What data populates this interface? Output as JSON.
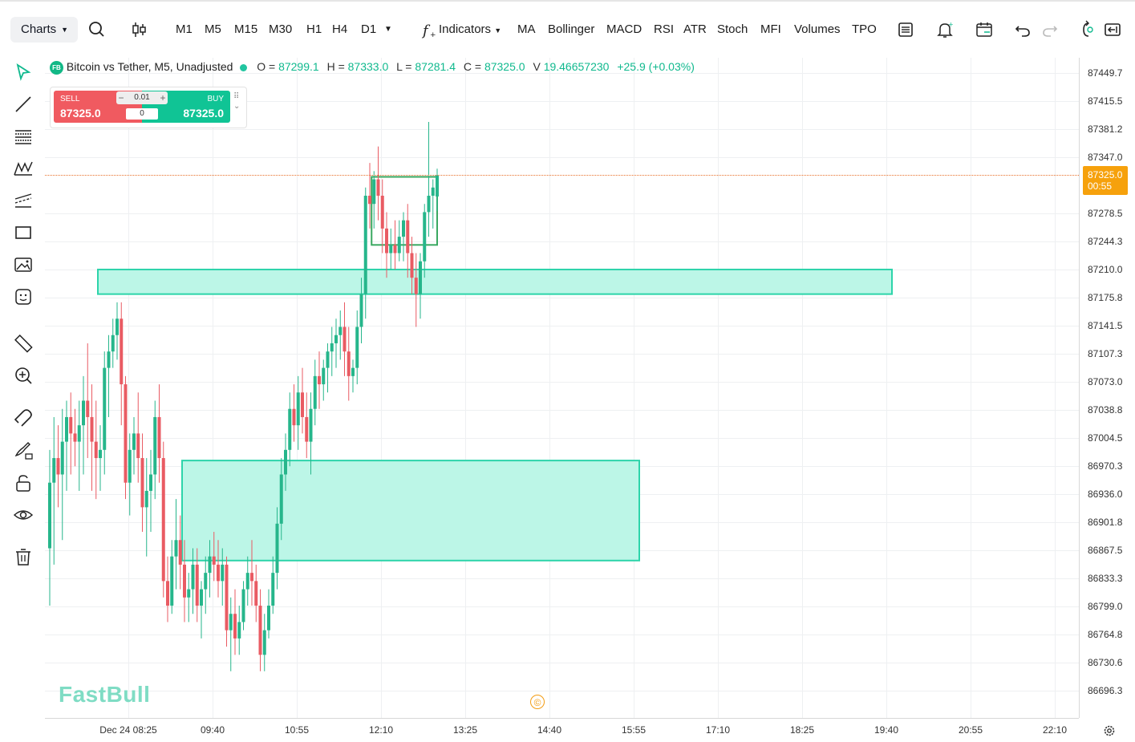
{
  "toolbar": {
    "charts_label": "Charts",
    "timeframes": [
      "M1",
      "M5",
      "M15",
      "M30",
      "H1",
      "H4",
      "D1"
    ],
    "active_timeframe": "M5",
    "indicators_label": "Indicators",
    "indicator_shortcuts": [
      "MA",
      "Bollinger",
      "MACD",
      "RSI",
      "ATR",
      "Stoch",
      "MFI",
      "Volumes",
      "TPO"
    ],
    "icons": [
      "search-icon",
      "candles-icon",
      "timeframe-more-icon",
      "function-icon",
      "layout-icon",
      "alert-bell-icon",
      "calendar-icon",
      "undo-icon",
      "redo-icon",
      "replay-icon",
      "fullscreen-exit-icon"
    ]
  },
  "left_tools": [
    "cursor-icon",
    "trendline-icon",
    "fib-icon",
    "pattern-icon",
    "channel-icon",
    "rectangle-icon",
    "image-icon",
    "emoji-icon",
    "ruler-icon",
    "zoom-in-icon",
    "magnet-icon",
    "brush-lock-icon",
    "lock-icon",
    "eye-icon",
    "trash-icon"
  ],
  "legend": {
    "badge": "FB",
    "title": "Bitcoin vs Tether, M5, Unadjusted",
    "o_label": "O =",
    "o_value": "87299.1",
    "h_label": "H =",
    "h_value": "87333.0",
    "l_label": "L =",
    "l_value": "87281.4",
    "c_label": "C =",
    "c_value": "87325.0",
    "v_label": "V",
    "v_value": "19.46657230",
    "change": "+25.9 (+0.03%)"
  },
  "trade": {
    "sell_label": "SELL",
    "sell_price": "87325.0",
    "buy_label": "BUY",
    "buy_price": "87325.0",
    "lot": "0.01",
    "minus": "−",
    "plus": "+",
    "qty": "0"
  },
  "last_price": {
    "price": "87325.0",
    "countdown": "00:55",
    "color": "#f6a10c"
  },
  "brand": "FastBull",
  "copyright_symbol": "©",
  "colors": {
    "up": "#26b68b",
    "down": "#e95b63",
    "zone_fill": "#b8f5e6",
    "zone_border": "#2dd4aa"
  },
  "chart_data": {
    "type": "candlestick",
    "price_ticks": [
      "87449.7",
      "87415.5",
      "87381.2",
      "87347.0",
      "87278.5",
      "87244.3",
      "87210.0",
      "87175.8",
      "87141.5",
      "87107.3",
      "87073.0",
      "87038.8",
      "87004.5",
      "86970.3",
      "86936.0",
      "86901.8",
      "86867.5",
      "86833.3",
      "86799.0",
      "86764.8",
      "86730.6",
      "86696.3"
    ],
    "time_ticks": [
      "Dec 24 08:25",
      "09:40",
      "10:55",
      "12:10",
      "13:25",
      "14:40",
      "15:55",
      "17:10",
      "18:25",
      "19:40",
      "20:55",
      "22:10"
    ],
    "ylim": [
      86696.3,
      87449.7
    ],
    "candles": [
      [
        86870,
        86990,
        86800,
        86950
      ],
      [
        86950,
        87030,
        86850,
        86980
      ],
      [
        86980,
        87020,
        86920,
        86960
      ],
      [
        86960,
        87040,
        86880,
        87000
      ],
      [
        87000,
        87050,
        86940,
        87030
      ],
      [
        87030,
        87060,
        86960,
        87010
      ],
      [
        87010,
        87040,
        86970,
        87000
      ],
      [
        87000,
        87050,
        86940,
        87020
      ],
      [
        87020,
        87080,
        86960,
        87050
      ],
      [
        87050,
        87120,
        86980,
        87030
      ],
      [
        87030,
        87070,
        86940,
        87000
      ],
      [
        87000,
        87050,
        86930,
        86980
      ],
      [
        86980,
        87020,
        86940,
        86990
      ],
      [
        86990,
        87110,
        86960,
        87090
      ],
      [
        87090,
        87130,
        87030,
        87110
      ],
      [
        87110,
        87150,
        87090,
        87130
      ],
      [
        87130,
        87170,
        87100,
        87150
      ],
      [
        87150,
        87170,
        87020,
        87070
      ],
      [
        87070,
        87080,
        86930,
        86950
      ],
      [
        86950,
        87010,
        86910,
        86990
      ],
      [
        86990,
        87030,
        86960,
        87010
      ],
      [
        87010,
        87060,
        86950,
        86980
      ],
      [
        86980,
        87010,
        86890,
        86920
      ],
      [
        86920,
        86980,
        86860,
        86940
      ],
      [
        86940,
        86990,
        86890,
        86960
      ],
      [
        86960,
        87050,
        86930,
        87030
      ],
      [
        87030,
        87070,
        86950,
        86980
      ],
      [
        86980,
        87000,
        86810,
        86830
      ],
      [
        86830,
        86860,
        86780,
        86800
      ],
      [
        86800,
        86880,
        86790,
        86860
      ],
      [
        86860,
        86930,
        86820,
        86880
      ],
      [
        86880,
        86910,
        86820,
        86850
      ],
      [
        86850,
        86880,
        86780,
        86810
      ],
      [
        86810,
        86840,
        86780,
        86820
      ],
      [
        86820,
        86870,
        86790,
        86850
      ],
      [
        86850,
        86870,
        86780,
        86800
      ],
      [
        86800,
        86830,
        86760,
        86820
      ],
      [
        86820,
        86860,
        86790,
        86840
      ],
      [
        86840,
        86880,
        86810,
        86860
      ],
      [
        86860,
        86890,
        86830,
        86850
      ],
      [
        86850,
        86880,
        86810,
        86830
      ],
      [
        86830,
        86870,
        86800,
        86850
      ],
      [
        86850,
        86860,
        86750,
        86770
      ],
      [
        86770,
        86810,
        86720,
        86790
      ],
      [
        86790,
        86820,
        86740,
        86760
      ],
      [
        86760,
        86800,
        86740,
        86780
      ],
      [
        86780,
        86830,
        86770,
        86820
      ],
      [
        86820,
        86860,
        86800,
        86840
      ],
      [
        86840,
        86880,
        86800,
        86830
      ],
      [
        86830,
        86850,
        86780,
        86800
      ],
      [
        86800,
        86820,
        86720,
        86740
      ],
      [
        86740,
        86790,
        86720,
        86770
      ],
      [
        86770,
        86820,
        86760,
        86800
      ],
      [
        86800,
        86860,
        86790,
        86840
      ],
      [
        86840,
        86920,
        86820,
        86900
      ],
      [
        86900,
        86980,
        86880,
        86960
      ],
      [
        86960,
        87010,
        86940,
        86990
      ],
      [
        86990,
        87060,
        86970,
        87040
      ],
      [
        87040,
        87070,
        87000,
        87020
      ],
      [
        87020,
        87080,
        86990,
        87060
      ],
      [
        87060,
        87090,
        87010,
        87030
      ],
      [
        87030,
        87060,
        86980,
        87000
      ],
      [
        87000,
        87060,
        86960,
        87040
      ],
      [
        87040,
        87100,
        87020,
        87080
      ],
      [
        87080,
        87110,
        87040,
        87070
      ],
      [
        87070,
        87100,
        87050,
        87090
      ],
      [
        87090,
        87120,
        87060,
        87110
      ],
      [
        87110,
        87140,
        87080,
        87120
      ],
      [
        87120,
        87150,
        87090,
        87130
      ],
      [
        87130,
        87160,
        87100,
        87140
      ],
      [
        87140,
        87170,
        87080,
        87110
      ],
      [
        87110,
        87140,
        87050,
        87080
      ],
      [
        87080,
        87100,
        87060,
        87090
      ],
      [
        87090,
        87160,
        87070,
        87140
      ],
      [
        87140,
        87200,
        87120,
        87180
      ],
      [
        87180,
        87310,
        87150,
        87300
      ],
      [
        87300,
        87340,
        87260,
        87290
      ],
      [
        87290,
        87330,
        87260,
        87320
      ],
      [
        87320,
        87360,
        87270,
        87300
      ],
      [
        87300,
        87320,
        87230,
        87260
      ],
      [
        87260,
        87280,
        87200,
        87230
      ],
      [
        87230,
        87260,
        87210,
        87240
      ],
      [
        87240,
        87270,
        87210,
        87230
      ],
      [
        87230,
        87270,
        87220,
        87250
      ],
      [
        87250,
        87280,
        87220,
        87270
      ],
      [
        87270,
        87290,
        87200,
        87230
      ],
      [
        87230,
        87250,
        87180,
        87200
      ],
      [
        87200,
        87230,
        87140,
        87180
      ],
      [
        87180,
        87230,
        87150,
        87220
      ],
      [
        87220,
        87290,
        87200,
        87280
      ],
      [
        87280,
        87390,
        87250,
        87300
      ],
      [
        87300,
        87320,
        87260,
        87310
      ],
      [
        87299.1,
        87333.0,
        87281.4,
        87325.0
      ]
    ],
    "zones": [
      {
        "from_index": 12,
        "to_index": 200,
        "top": 87210.0,
        "bottom": 87180.0
      },
      {
        "from_index": 32,
        "to_index": 140,
        "top": 86977.0,
        "bottom": 86855.0
      },
      {
        "from_index": 77,
        "to_index": 92,
        "top": 87323.0,
        "bottom": 87240.0
      }
    ]
  }
}
